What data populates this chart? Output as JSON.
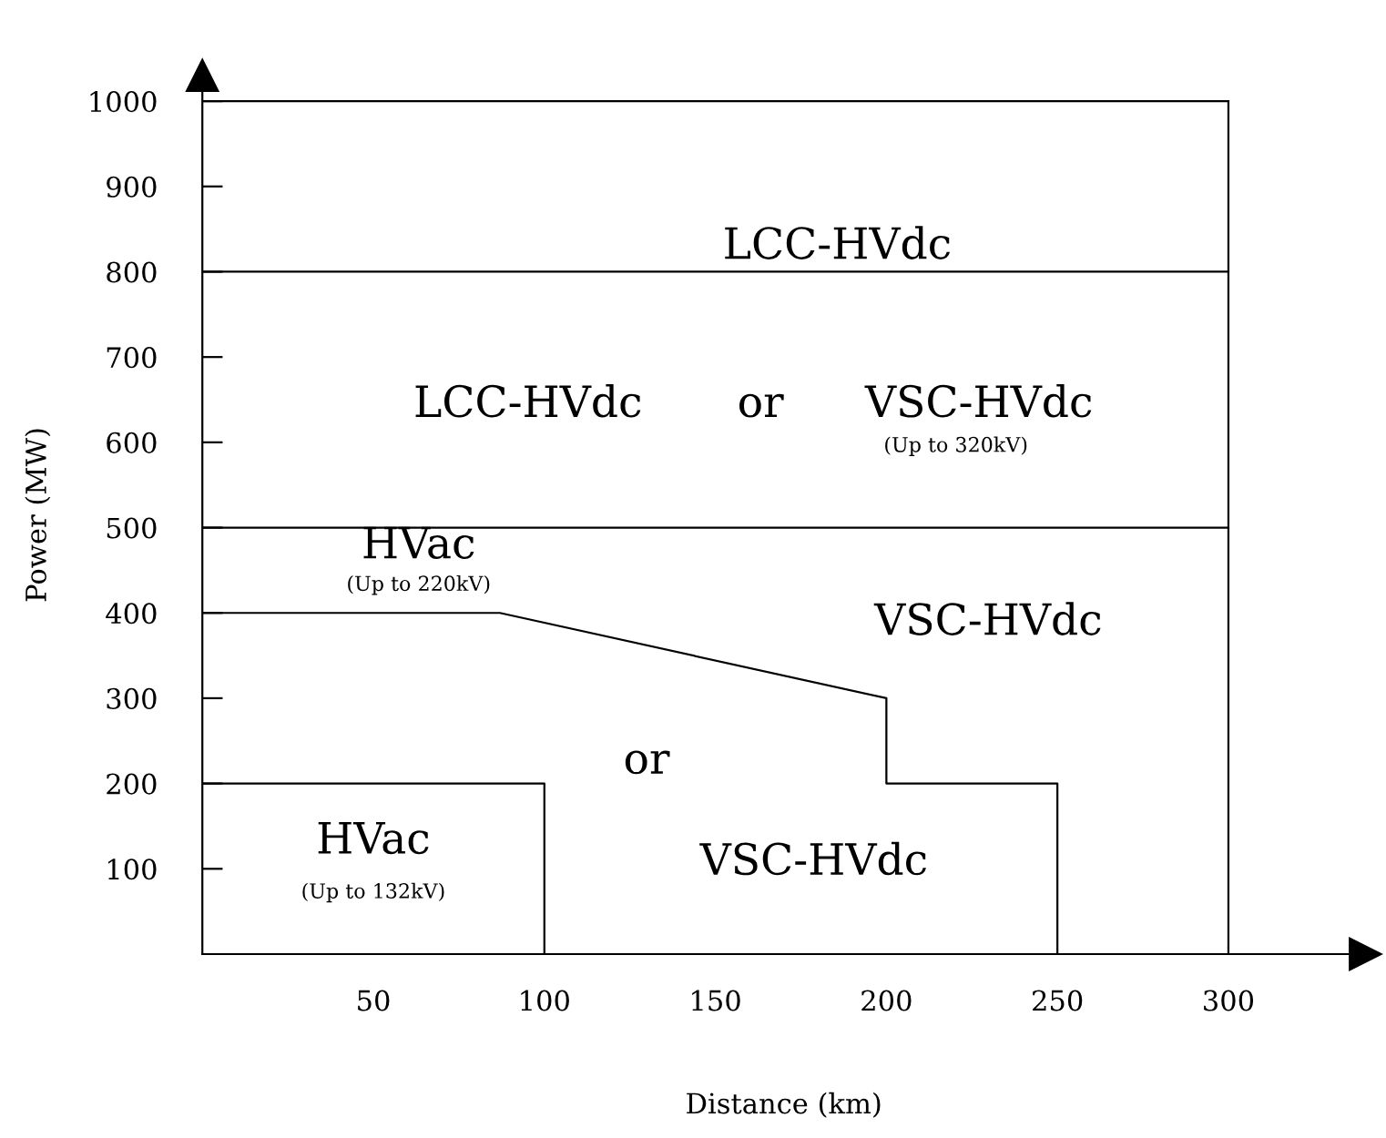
{
  "chart_data": {
    "type": "line",
    "xlabel": "Distance (km)",
    "ylabel": "Power (MW)",
    "xlim": [
      0,
      340
    ],
    "ylim": [
      0,
      1030
    ],
    "xticks": [
      50,
      100,
      150,
      200,
      250,
      300
    ],
    "yticks": [
      100,
      200,
      300,
      400,
      500,
      600,
      700,
      800,
      900,
      1000
    ],
    "grid": false,
    "legend": false,
    "marker": "none",
    "line_style": "solid",
    "series": [
      {
        "color": "#000000",
        "x": [
          0,
          300
        ],
        "values": [
          1000,
          1000
        ]
      },
      {
        "color": "#000000",
        "x": [
          0,
          300
        ],
        "values": [
          800,
          800
        ]
      },
      {
        "color": "#000000",
        "x": [
          0,
          300
        ],
        "values": [
          500,
          500
        ]
      },
      {
        "color": "#000000",
        "x": [
          300,
          300
        ],
        "values": [
          0,
          1000
        ]
      },
      {
        "color": "#000000",
        "x": [
          0,
          87,
          200,
          200,
          250,
          250
        ],
        "values": [
          400,
          400,
          300,
          200,
          200,
          0
        ]
      },
      {
        "color": "#000000",
        "x": [
          0,
          100,
          100
        ],
        "values": [
          200,
          200,
          0
        ]
      }
    ],
    "annotations": [
      "LCC-HVdc",
      "LCC-HVdc",
      "or",
      "VSC-HVdc",
      "(Up to 320kV)",
      "VSC-HVdc",
      "HVac",
      "(Up to 220kV)",
      "or",
      "VSC-HVdc",
      "HVac",
      "(Up to 132kV)"
    ]
  }
}
